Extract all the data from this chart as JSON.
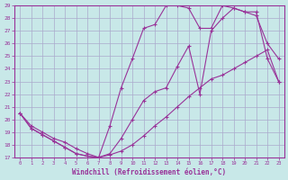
{
  "xlabel": "Windchill (Refroidissement éolien,°C)",
  "bg_color": "#c8e8e8",
  "grid_color": "#aaaacc",
  "line_color": "#993399",
  "xlim": [
    -0.5,
    23.5
  ],
  "ylim": [
    17,
    29
  ],
  "xticks": [
    0,
    1,
    2,
    3,
    4,
    5,
    6,
    7,
    8,
    9,
    10,
    11,
    12,
    13,
    14,
    15,
    16,
    17,
    18,
    19,
    20,
    21,
    22,
    23
  ],
  "yticks": [
    17,
    18,
    19,
    20,
    21,
    22,
    23,
    24,
    25,
    26,
    27,
    28,
    29
  ],
  "line1_x": [
    0,
    1,
    2,
    3,
    4,
    5,
    6,
    7,
    8,
    9,
    10,
    11,
    12,
    13,
    14,
    15,
    16,
    17,
    18,
    19,
    20,
    21,
    22,
    23
  ],
  "line1_y": [
    20.5,
    19.3,
    18.8,
    18.3,
    17.8,
    17.3,
    17.1,
    17.0,
    17.2,
    17.5,
    18.0,
    18.7,
    19.5,
    20.2,
    21.0,
    21.8,
    22.5,
    23.2,
    23.5,
    24.0,
    24.5,
    25.0,
    25.5,
    23.0
  ],
  "line2_x": [
    0,
    1,
    2,
    3,
    4,
    5,
    6,
    7,
    8,
    9,
    10,
    11,
    12,
    13,
    14,
    15,
    16,
    17,
    18,
    19,
    20,
    21,
    22,
    23
  ],
  "line2_y": [
    20.5,
    19.3,
    18.8,
    18.3,
    17.8,
    17.3,
    17.1,
    17.0,
    19.5,
    22.5,
    24.8,
    27.2,
    27.5,
    29.0,
    29.0,
    28.8,
    27.2,
    27.2,
    29.0,
    28.8,
    28.5,
    28.5,
    24.8,
    23.0
  ],
  "line3_x": [
    0,
    1,
    2,
    3,
    4,
    5,
    6,
    7,
    8,
    9,
    10,
    11,
    12,
    13,
    14,
    15,
    16,
    17,
    18,
    19,
    20,
    21,
    22,
    23
  ],
  "line3_y": [
    20.5,
    19.5,
    19.0,
    18.5,
    18.2,
    17.7,
    17.3,
    17.0,
    17.3,
    18.5,
    20.0,
    21.5,
    22.2,
    22.5,
    24.2,
    25.8,
    22.0,
    27.0,
    28.0,
    28.8,
    28.5,
    28.2,
    26.0,
    24.8
  ]
}
